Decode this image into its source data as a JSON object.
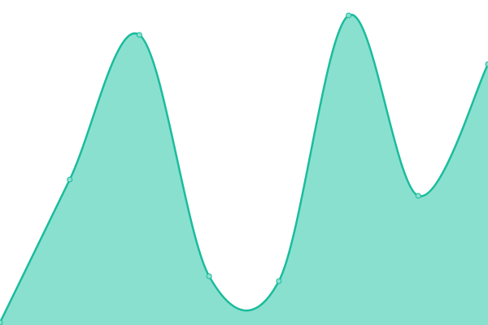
{
  "chart_data": {
    "type": "area",
    "title": "",
    "xlabel": "",
    "ylabel": "",
    "x": [
      0,
      1,
      2,
      3,
      4,
      5,
      6,
      7
    ],
    "series": [
      {
        "values": [
          3,
          179,
          357,
          60,
          54,
          381,
          159,
          321
        ]
      }
    ],
    "ylim": [
      0,
      400
    ],
    "grid": false,
    "legend": "none",
    "smooth": true,
    "colors": {
      "line": "#1abc9c",
      "fill": "#8ae0cf",
      "marker_fill": "#8ae0cf"
    }
  }
}
